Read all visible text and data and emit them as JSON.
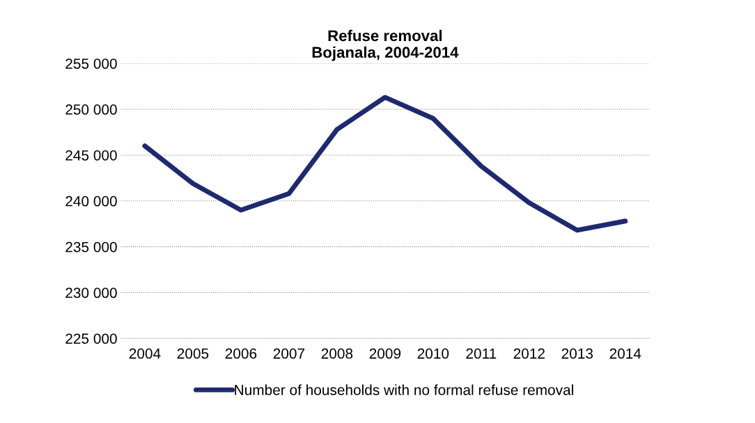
{
  "chart_data": {
    "type": "line",
    "title": "Refuse removal\nBojanala, 2004-2014",
    "categories": [
      "2004",
      "2005",
      "2006",
      "2007",
      "2008",
      "2009",
      "2010",
      "2011",
      "2012",
      "2013",
      "2014"
    ],
    "series": [
      {
        "name": "Number of households with no formal refuse removal",
        "color": "#1f2a6e",
        "values": [
          246000,
          241900,
          239000,
          240800,
          247800,
          251300,
          249000,
          243800,
          239800,
          236800,
          237800
        ]
      }
    ],
    "ylim": [
      225000,
      255000
    ],
    "yticks": [
      {
        "value": 225000,
        "label": "225 000"
      },
      {
        "value": 230000,
        "label": "230 000"
      },
      {
        "value": 235000,
        "label": "235 000"
      },
      {
        "value": 240000,
        "label": "240 000"
      },
      {
        "value": 245000,
        "label": "245 000"
      },
      {
        "value": 250000,
        "label": "250 000"
      },
      {
        "value": 255000,
        "label": "255 000"
      }
    ],
    "grid": "y",
    "legend": "bottom",
    "marker": "none",
    "line_style": "solid"
  }
}
